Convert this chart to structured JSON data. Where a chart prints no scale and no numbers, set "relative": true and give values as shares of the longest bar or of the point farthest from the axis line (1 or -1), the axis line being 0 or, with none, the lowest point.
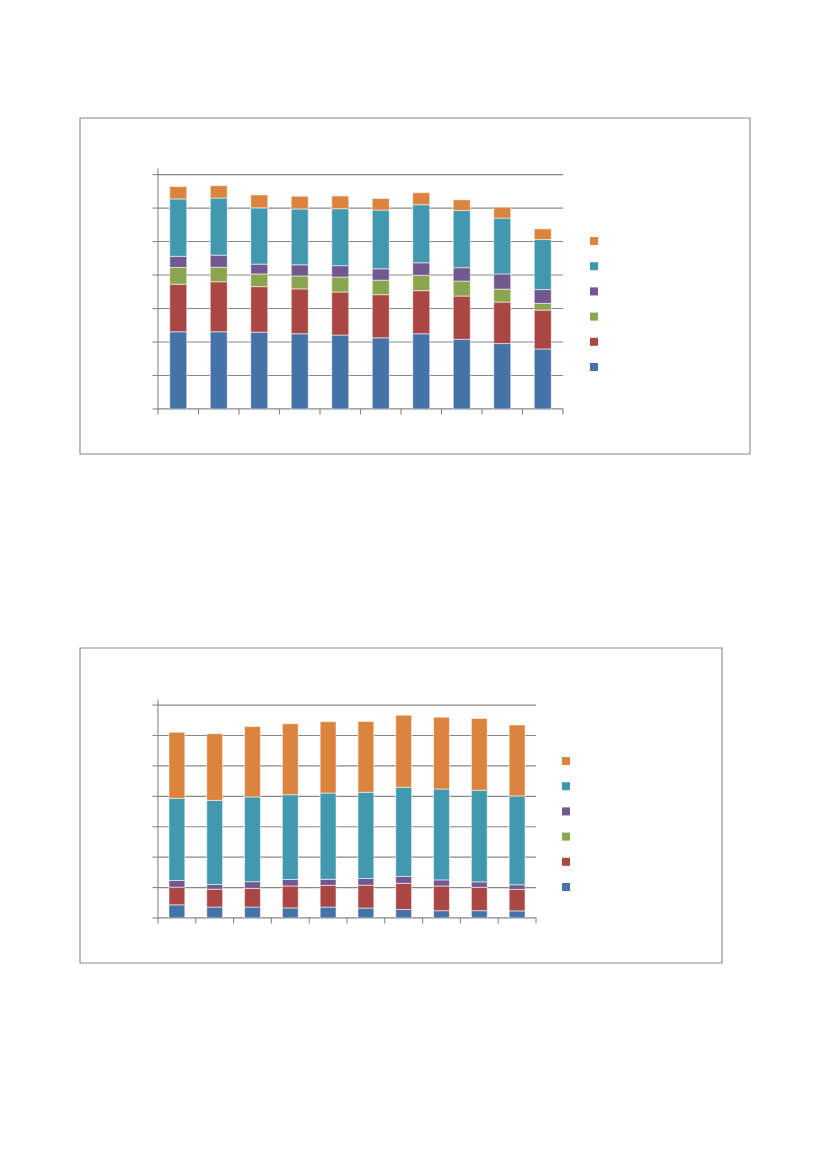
{
  "chart_data": [
    {
      "type": "bar",
      "stacked": true,
      "relative": true,
      "grid": "y",
      "categories": [
        null,
        null,
        null,
        null,
        null,
        null,
        null,
        null,
        null,
        null
      ],
      "series": [
        {
          "color": "#4572a7",
          "values": [
            0.346,
            0.346,
            0.344,
            0.337,
            0.331,
            0.319,
            0.337,
            0.312,
            0.293,
            0.269
          ]
        },
        {
          "color": "#aa4643",
          "values": [
            0.213,
            0.224,
            0.204,
            0.201,
            0.193,
            0.193,
            0.193,
            0.194,
            0.186,
            0.174
          ]
        },
        {
          "color": "#89a54e",
          "values": [
            0.075,
            0.065,
            0.057,
            0.058,
            0.067,
            0.065,
            0.069,
            0.067,
            0.058,
            0.03
          ]
        },
        {
          "color": "#71588f",
          "values": [
            0.05,
            0.054,
            0.044,
            0.05,
            0.051,
            0.051,
            0.056,
            0.06,
            0.068,
            0.062
          ]
        },
        {
          "color": "#4198af",
          "values": [
            0.257,
            0.256,
            0.252,
            0.25,
            0.255,
            0.263,
            0.26,
            0.256,
            0.25,
            0.224
          ]
        },
        {
          "color": "#db843d",
          "values": [
            0.055,
            0.055,
            0.058,
            0.057,
            0.057,
            0.052,
            0.054,
            0.048,
            0.049,
            0.048
          ]
        }
      ]
    },
    {
      "type": "bar",
      "stacked": true,
      "relative": true,
      "grid": "y",
      "categories": [
        null,
        null,
        null,
        null,
        null,
        null,
        null,
        null,
        null,
        null
      ],
      "series": [
        {
          "color": "#4572a7",
          "values": [
            0.065,
            0.054,
            0.054,
            0.05,
            0.054,
            0.049,
            0.042,
            0.036,
            0.036,
            0.035
          ]
        },
        {
          "color": "#aa4643",
          "values": [
            0.087,
            0.088,
            0.092,
            0.108,
            0.107,
            0.113,
            0.129,
            0.122,
            0.115,
            0.106
          ]
        },
        {
          "color": "#89a54e",
          "values": [
            null,
            null,
            null,
            null,
            null,
            null,
            null,
            null,
            null,
            null
          ]
        },
        {
          "color": "#71588f",
          "values": [
            0.033,
            0.023,
            0.033,
            0.032,
            0.03,
            0.033,
            0.034,
            0.03,
            0.027,
            0.023
          ]
        },
        {
          "color": "#4198af",
          "values": [
            0.405,
            0.415,
            0.418,
            0.418,
            0.425,
            0.425,
            0.44,
            0.448,
            0.452,
            0.438
          ]
        },
        {
          "color": "#db843d",
          "values": [
            0.326,
            0.329,
            0.347,
            0.35,
            0.352,
            0.349,
            0.355,
            0.354,
            0.354,
            0.35
          ]
        }
      ]
    }
  ]
}
